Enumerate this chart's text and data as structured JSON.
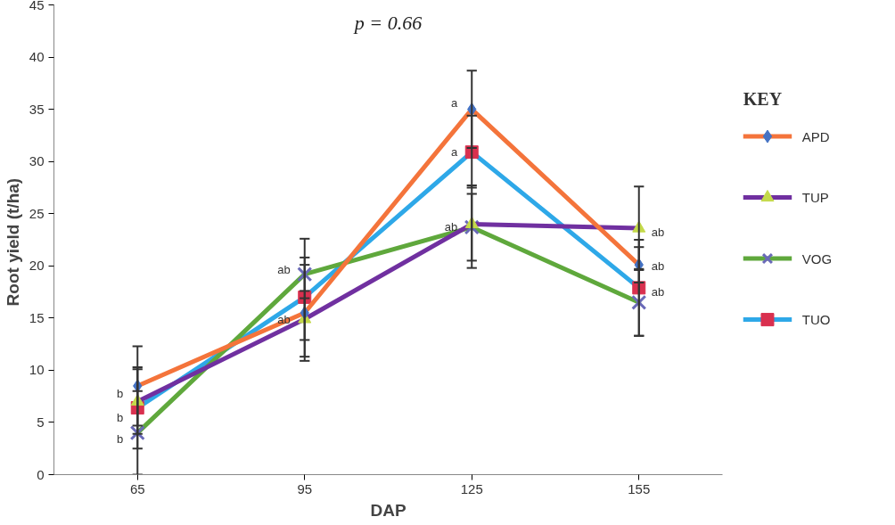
{
  "chart_data": {
    "type": "line",
    "xlabel": "DAP",
    "ylabel": "Root  yield (t/ha)",
    "legend_title": "KEY",
    "categories": [
      "65",
      "95",
      "125",
      "155"
    ],
    "ylim": [
      0,
      45
    ],
    "yticks": [
      0,
      5,
      10,
      15,
      20,
      25,
      30,
      35,
      40,
      45
    ],
    "legend": "right",
    "series": [
      {
        "name": "APD",
        "color": "#f4743b",
        "marker": "diamond",
        "colors": [
          "#4472c4",
          "#4472c4",
          "#4472c4",
          "#4472c4"
        ],
        "values": [
          8.5,
          15.5,
          35.0,
          20.1
        ],
        "errors": [
          3.8,
          [
            10.9,
            20.1
          ],
          [
            31.3,
            38.7
          ],
          1.7
        ]
      },
      {
        "name": "TUP",
        "color": "#7030a0",
        "marker": "triangle",
        "colors": [
          "#c4d94a",
          "#c4d94a",
          "#c4d94a",
          "#c4d94a"
        ],
        "values": [
          7.0,
          14.9,
          24.0,
          23.6
        ],
        "errors": [
          3.1,
          [
            12.9,
            16.9
          ],
          [
            19.8,
            27.7
          ],
          4.0
        ]
      },
      {
        "name": "VOG",
        "color": "#5fa83c",
        "marker": "x",
        "colors": [
          "#6a6ab8",
          "#6a6ab8",
          "#6a6ab8",
          "#6a6ab8"
        ],
        "values": [
          4.0,
          19.2,
          23.7,
          16.5
        ],
        "errors": [
          4.0,
          [
            17.6,
            20.8
          ],
          [
            20.5,
            26.9
          ],
          3.2
        ]
      },
      {
        "name": "TUO",
        "color": "#2ea8e8",
        "marker": "square",
        "colors": [
          "#d9304f",
          "#d9304f",
          "#d9304f",
          "#d9304f"
        ],
        "values": [
          6.4,
          17.0,
          30.9,
          17.9
        ],
        "errors": [
          3.9,
          [
            11.3,
            22.6
          ],
          [
            27.5,
            34.4
          ],
          4.6
        ]
      }
    ],
    "annotations": [
      "p = 0.66",
      {
        "text": "b",
        "x": "65",
        "y": 7.8
      },
      {
        "text": "b",
        "x": "65",
        "y": 5.5
      },
      {
        "text": "b",
        "x": "65",
        "y": 3.4
      },
      {
        "text": "ab",
        "x": "95",
        "y": 19.6
      },
      {
        "text": "ab",
        "x": "95",
        "y": 14.9
      },
      {
        "text": "a",
        "x": "125",
        "y": 35.6
      },
      {
        "text": "a",
        "x": "125",
        "y": 30.9
      },
      {
        "text": "ab",
        "x": "125",
        "y": 23.7
      },
      {
        "text": "ab",
        "x": "155",
        "y": 23.2
      },
      {
        "text": "ab",
        "x": "155",
        "y": 20.0
      },
      {
        "text": "ab",
        "x": "155",
        "y": 17.5
      }
    ]
  }
}
